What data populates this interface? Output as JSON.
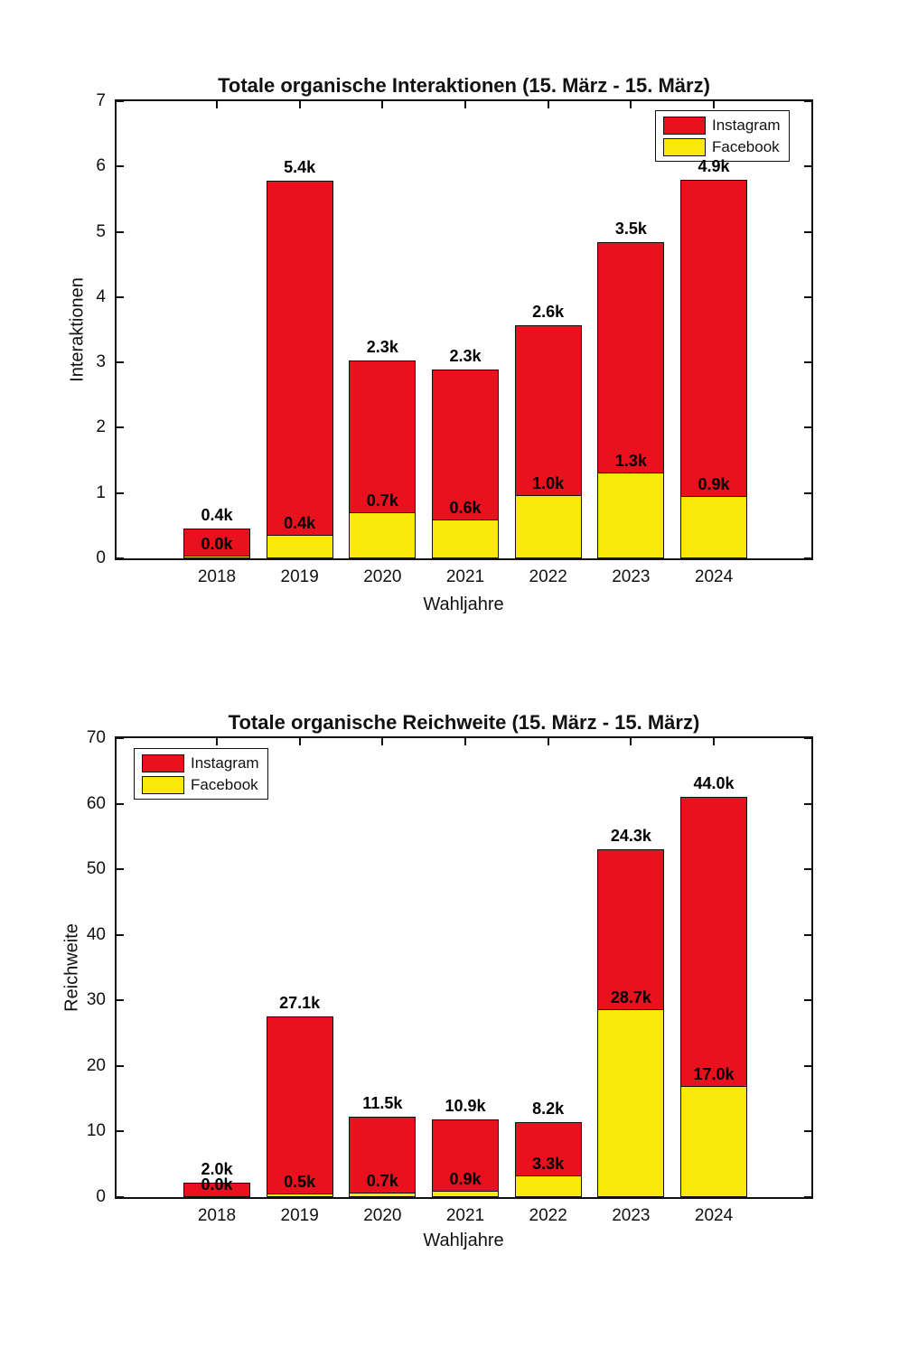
{
  "chart_data": [
    {
      "type": "bar",
      "variant": "stacked",
      "title": "Totale organische Interaktionen (15. März - 15. März)",
      "xlabel": "Wahljahre",
      "ylabel": "Interaktionen",
      "categories": [
        "2018",
        "2019",
        "2020",
        "2021",
        "2022",
        "2023",
        "2024"
      ],
      "ylim": [
        0,
        7
      ],
      "yticks": [
        0,
        1,
        2,
        3,
        4,
        5,
        6,
        7
      ],
      "grid": false,
      "legend_position": "top-right",
      "axis_unit": "thousands",
      "series": [
        {
          "name": "Instagram",
          "color": "#e8111d",
          "stack_position": "top",
          "values": [
            0.41,
            5.42,
            2.32,
            2.3,
            2.6,
            3.53,
            4.85
          ],
          "labels": [
            "0.4k",
            "5.4k",
            "2.3k",
            "2.3k",
            "2.6k",
            "3.5k",
            "4.9k"
          ]
        },
        {
          "name": "Facebook",
          "color": "#fbe80c",
          "stack_position": "bottom",
          "values": [
            0.04,
            0.36,
            0.71,
            0.59,
            0.97,
            1.31,
            0.95
          ],
          "labels": [
            "0.0k",
            "0.4k",
            "0.7k",
            "0.6k",
            "1.0k",
            "1.3k",
            "0.9k"
          ]
        }
      ]
    },
    {
      "type": "bar",
      "variant": "stacked",
      "title": "Totale organische Reichweite (15. März - 15. März)",
      "xlabel": "Wahljahre",
      "ylabel": "Reichweite",
      "categories": [
        "2018",
        "2019",
        "2020",
        "2021",
        "2022",
        "2023",
        "2024"
      ],
      "ylim": [
        0,
        70
      ],
      "yticks": [
        0,
        10,
        20,
        30,
        40,
        50,
        60,
        70
      ],
      "grid": false,
      "legend_position": "top-left",
      "axis_unit": "thousands",
      "series": [
        {
          "name": "Instagram",
          "color": "#e8111d",
          "stack_position": "top",
          "values": [
            2.0,
            27.1,
            11.5,
            10.9,
            8.2,
            24.3,
            44.0
          ],
          "labels": [
            "2.0k",
            "27.1k",
            "11.5k",
            "10.9k",
            "8.2k",
            "24.3k",
            "44.0k"
          ]
        },
        {
          "name": "Facebook",
          "color": "#fbe80c",
          "stack_position": "bottom",
          "values": [
            0.05,
            0.5,
            0.7,
            0.9,
            3.3,
            28.7,
            17.0
          ],
          "labels": [
            "0.0k",
            "0.5k",
            "0.7k",
            "0.9k",
            "3.3k",
            "28.7k",
            "17.0k"
          ]
        }
      ]
    }
  ]
}
